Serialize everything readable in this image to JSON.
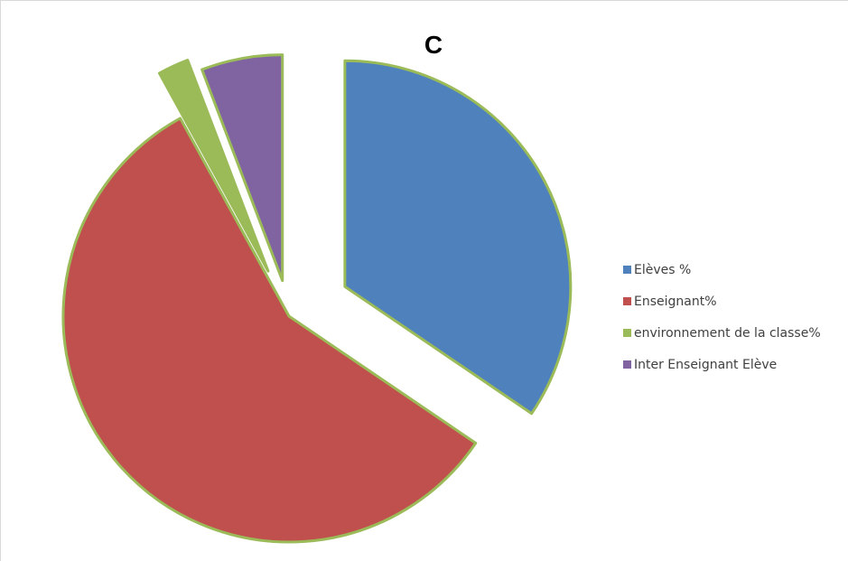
{
  "chart_data": {
    "type": "pie",
    "title": "C",
    "exploded": true,
    "slices": [
      {
        "label": "Elèves %",
        "value": 34.5,
        "color": "#4f81bd"
      },
      {
        "label": "Enseignant%",
        "value": 57.5,
        "color": "#c0504d"
      },
      {
        "label": "environnement de la classe%",
        "value": 2.2,
        "color": "#9bbb59"
      },
      {
        "label": "Inter Enseignant Elève",
        "value": 5.8,
        "color": "#8064a2"
      }
    ],
    "slice_border_color": "#9bbb59",
    "legend": {
      "position": "right"
    }
  }
}
